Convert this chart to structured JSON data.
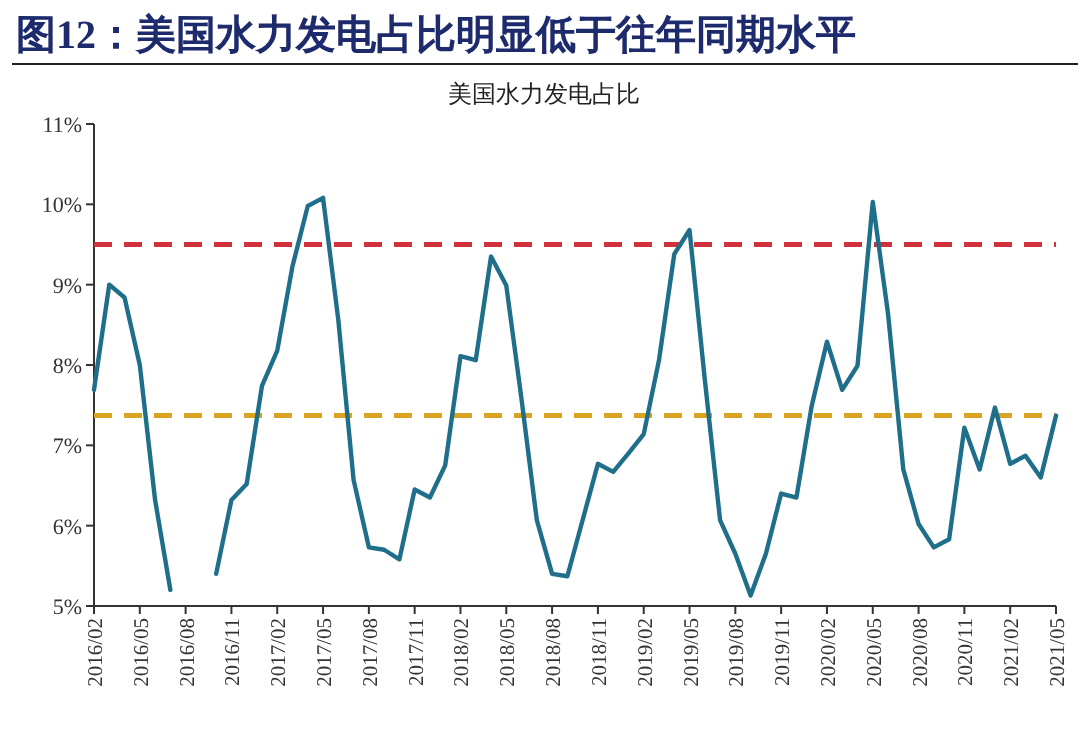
{
  "chart_data": {
    "type": "line",
    "title": "图12：美国水力发电占比明显低于往年同期水平",
    "subtitle": "美国水力发电占比",
    "categories": [
      "2016/02",
      null,
      null,
      "2016/05",
      null,
      null,
      "2016/08",
      null,
      null,
      "2016/11",
      null,
      null,
      "2017/02",
      null,
      null,
      "2017/05",
      null,
      null,
      "2017/08",
      null,
      null,
      "2017/11",
      null,
      null,
      "2018/02",
      null,
      null,
      "2018/05",
      null,
      null,
      "2018/08",
      null,
      null,
      "2018/11",
      null,
      null,
      "2019/02",
      null,
      null,
      "2019/05",
      null,
      null,
      "2019/08",
      null,
      null,
      "2019/11",
      null,
      null,
      "2020/02",
      null,
      null,
      "2020/05",
      null,
      null,
      "2020/08",
      null,
      null,
      "2020/11",
      null,
      null,
      "2021/02",
      null,
      null,
      "2021/05"
    ],
    "series": [
      {
        "color": "#1f6f8b",
        "values": [
          7.69,
          9.0,
          8.84,
          8.0,
          6.32,
          5.2,
          null,
          null,
          5.4,
          6.32,
          6.52,
          7.74,
          8.18,
          9.23,
          9.98,
          10.08,
          8.56,
          6.57,
          5.73,
          5.7,
          5.58,
          6.45,
          6.35,
          6.75,
          8.11,
          8.06,
          9.35,
          8.99,
          7.57,
          6.07,
          5.4,
          5.37,
          6.07,
          6.77,
          6.67,
          6.9,
          7.14,
          8.06,
          9.38,
          9.68,
          7.82,
          6.07,
          5.65,
          5.13,
          5.65,
          6.4,
          6.35,
          7.49,
          8.29,
          7.69,
          7.99,
          10.03,
          8.64,
          6.7,
          6.02,
          5.73,
          5.83,
          7.22,
          6.7,
          7.47,
          6.77,
          6.87,
          6.6,
          7.37
        ]
      }
    ],
    "ylim": [
      5,
      11
    ],
    "yticks": [
      {
        "value": 5,
        "label": "5%"
      },
      {
        "value": 6,
        "label": "6%"
      },
      {
        "value": 7,
        "label": "7%"
      },
      {
        "value": 8,
        "label": "8%"
      },
      {
        "value": 9,
        "label": "9%"
      },
      {
        "value": 10,
        "label": "10%"
      },
      {
        "value": 11,
        "label": "11%"
      }
    ],
    "ref_lines": [
      {
        "axis": "y",
        "value": 9.5,
        "color": "#d0313a",
        "line_style": "dashed"
      },
      {
        "axis": "y",
        "value": 7.37,
        "color": "#d9a422",
        "line_style": "dashed"
      }
    ],
    "grid": false,
    "marker": "none",
    "line_style": "solid"
  }
}
